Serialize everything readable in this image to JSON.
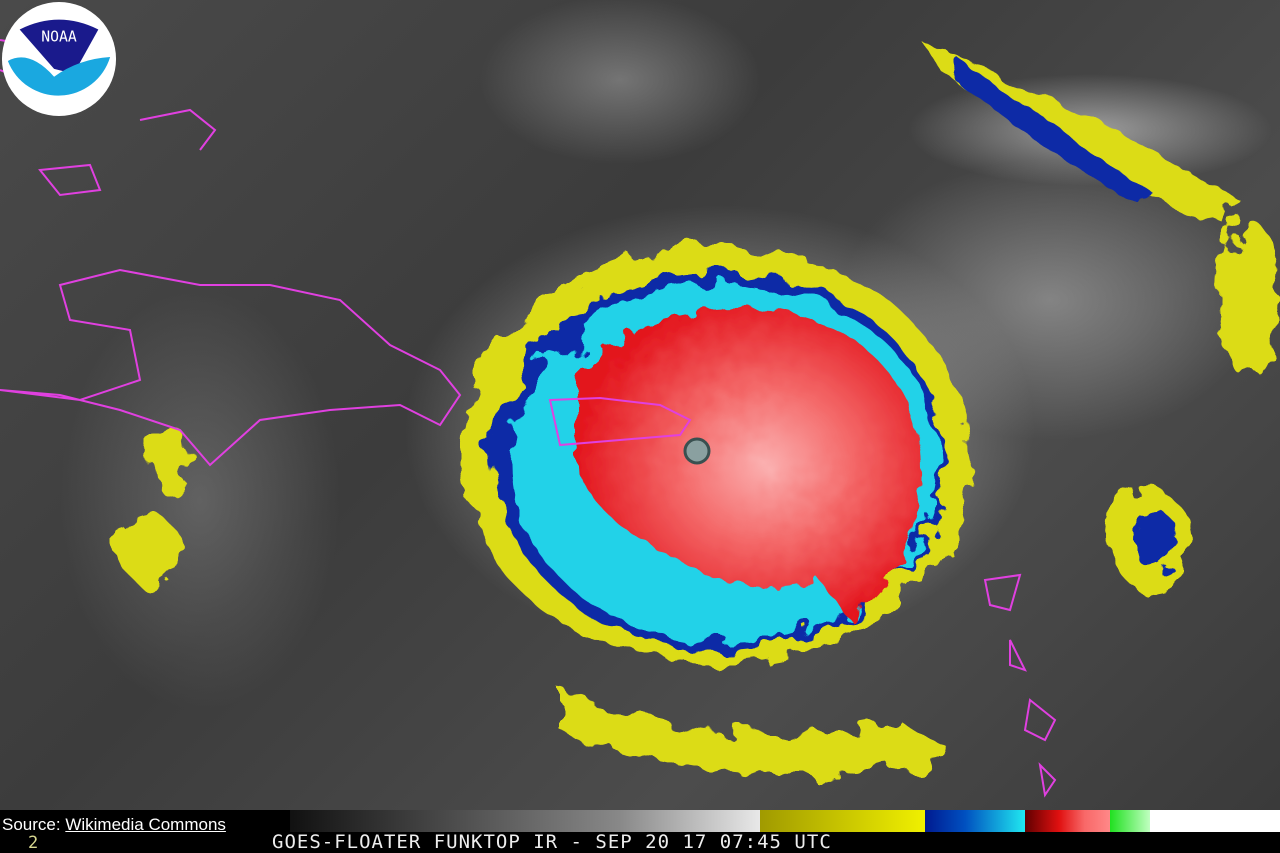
{
  "image": {
    "subject": "hurricane-infrared-satellite",
    "caption": "GOES-FLOATER FUNKTOP IR - SEP 20 17 07:45 UTC",
    "frame_number": "2",
    "source_label": "Source:",
    "source_link": "Wikimedia Commons",
    "logo_text": "NOAA",
    "colors": {
      "eyewall_red": "#e8141e",
      "inner_pink": "#f87a7a",
      "cyan_band": "#1fd4e8",
      "blue_band": "#0a2aa8",
      "yellow_band": "#e0e010",
      "coastline_magenta": "#e040e0",
      "noaa_navy": "#1a1a8c",
      "noaa_light_blue": "#1aa8e0"
    }
  }
}
